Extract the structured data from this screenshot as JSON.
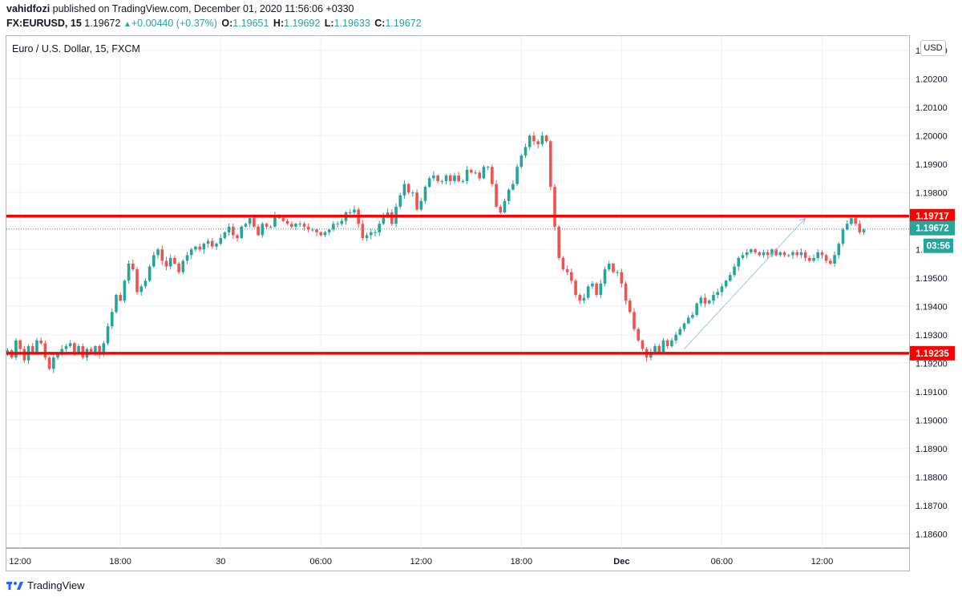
{
  "header": {
    "author": "vahidfozi",
    "published_text": "published on TradingView.com, December 01, 2020 11:56:06 +0330",
    "symbol": "FX:EURUSD, 15",
    "last": "1.19672",
    "change": "+0.00440 (+0.37%)",
    "o_label": "O:",
    "o_value": "1.19651",
    "h_label": "H:",
    "h_value": "1.19692",
    "l_label": "L:",
    "l_value": "1.19633",
    "c_label": "C:",
    "c_value": "1.19672"
  },
  "legend_text": "Euro / U.S. Dollar, 15, FXCM",
  "currency_label": "USD",
  "brand_name": "TradingView",
  "colors": {
    "up": "#26a69a",
    "down": "#ef5350",
    "level": "#ff0000",
    "price_badge": "#26a69a",
    "arrow": "#9fc5e8"
  },
  "chart_data": {
    "type": "candlestick",
    "ylim": [
      1.1855,
      1.2035
    ],
    "y_ticks": [
      "1.20300",
      "1.20200",
      "1.20100",
      "1.20000",
      "1.19900",
      "1.19800",
      "1.19700",
      "1.19600",
      "1.19500",
      "1.19400",
      "1.19300",
      "1.19200",
      "1.19100",
      "1.19000",
      "1.18900",
      "1.18800",
      "1.18700",
      "1.18600"
    ],
    "y_tick_values": [
      1.203,
      1.202,
      1.201,
      1.2,
      1.199,
      1.198,
      1.197,
      1.196,
      1.195,
      1.194,
      1.193,
      1.192,
      1.191,
      1.19,
      1.189,
      1.188,
      1.187,
      1.186
    ],
    "x_ticks": [
      {
        "label": "12:00",
        "bar": 3
      },
      {
        "label": "18:00",
        "bar": 27
      },
      {
        "label": "30",
        "bar": 51
      },
      {
        "label": "06:00",
        "bar": 75
      },
      {
        "label": "12:00",
        "bar": 99
      },
      {
        "label": "18:00",
        "bar": 123
      },
      {
        "label": "Dec",
        "bar": 147
      },
      {
        "label": "06:00",
        "bar": 171
      },
      {
        "label": "12:00",
        "bar": 195
      }
    ],
    "horizontal_levels": [
      {
        "value": 1.19717,
        "label": "1.19717"
      },
      {
        "value": 1.19235,
        "label": "1.19235"
      }
    ],
    "last_price": {
      "value": 1.19672,
      "label": "1.19672",
      "countdown": "03:56"
    },
    "trend_arrow": {
      "from_bar": 162,
      "from_price": 1.1925,
      "to_bar": 191,
      "to_price": 1.1971
    },
    "bar_count": 215,
    "close": [
      1.19245,
      1.1922,
      1.1928,
      1.1925,
      1.1921,
      1.1926,
      1.1924,
      1.1928,
      1.1927,
      1.1922,
      1.1918,
      1.1922,
      1.1923,
      1.1925,
      1.1926,
      1.1927,
      1.1924,
      1.1926,
      1.1922,
      1.1925,
      1.1924,
      1.1926,
      1.1923,
      1.1927,
      1.1933,
      1.1938,
      1.1944,
      1.1942,
      1.1949,
      1.1955,
      1.1953,
      1.1945,
      1.1947,
      1.1949,
      1.1954,
      1.1958,
      1.196,
      1.1956,
      1.1954,
      1.1957,
      1.1955,
      1.1952,
      1.1956,
      1.1958,
      1.196,
      1.1961,
      1.196,
      1.1962,
      1.1963,
      1.1961,
      1.1962,
      1.1964,
      1.1966,
      1.1968,
      1.1965,
      1.1964,
      1.1968,
      1.1969,
      1.1971,
      1.1968,
      1.1965,
      1.1969,
      1.1968,
      1.1968,
      1.1972,
      1.1971,
      1.197,
      1.1969,
      1.1968,
      1.1969,
      1.1969,
      1.1968,
      1.1967,
      1.1967,
      1.1966,
      1.1965,
      1.1966,
      1.1967,
      1.1969,
      1.1969,
      1.197,
      1.1973,
      1.1973,
      1.1974,
      1.1969,
      1.1964,
      1.1965,
      1.1966,
      1.1966,
      1.1969,
      1.1972,
      1.1973,
      1.1969,
      1.1975,
      1.1979,
      1.1983,
      1.198,
      1.198,
      1.1974,
      1.1977,
      1.1982,
      1.1985,
      1.1986,
      1.1984,
      1.1984,
      1.1986,
      1.1984,
      1.1986,
      1.1984,
      1.1984,
      1.1988,
      1.1987,
      1.1987,
      1.1985,
      1.1989,
      1.1989,
      1.1983,
      1.1975,
      1.1973,
      1.1977,
      1.1981,
      1.1983,
      1.1989,
      1.1993,
      1.1996,
      1.2,
      1.1998,
      1.1997,
      1.2,
      1.1998,
      1.1982,
      1.1968,
      1.1957,
      1.1953,
      1.1952,
      1.1949,
      1.1944,
      1.1942,
      1.1943,
      1.1947,
      1.1948,
      1.1944,
      1.1948,
      1.1953,
      1.1955,
      1.1952,
      1.1952,
      1.1948,
      1.1942,
      1.1938,
      1.1932,
      1.1928,
      1.1925,
      1.1922,
      1.1924,
      1.1926,
      1.1924,
      1.1928,
      1.1926,
      1.1928,
      1.193,
      1.1932,
      1.1934,
      1.1936,
      1.1937,
      1.1941,
      1.1943,
      1.1941,
      1.1942,
      1.1944,
      1.1945,
      1.1947,
      1.1949,
      1.1951,
      1.1954,
      1.1957,
      1.1958,
      1.1959,
      1.196,
      1.1959,
      1.1958,
      1.1959,
      1.1958,
      1.196,
      1.1958,
      1.1959,
      1.1958,
      1.1958,
      1.1959,
      1.1958,
      1.1959,
      1.1957,
      1.1956,
      1.1957,
      1.1959,
      1.1958,
      1.1956,
      1.1955,
      1.1958,
      1.1962,
      1.1967,
      1.1969,
      1.1971,
      1.1969,
      1.1966,
      1.1967
    ]
  }
}
